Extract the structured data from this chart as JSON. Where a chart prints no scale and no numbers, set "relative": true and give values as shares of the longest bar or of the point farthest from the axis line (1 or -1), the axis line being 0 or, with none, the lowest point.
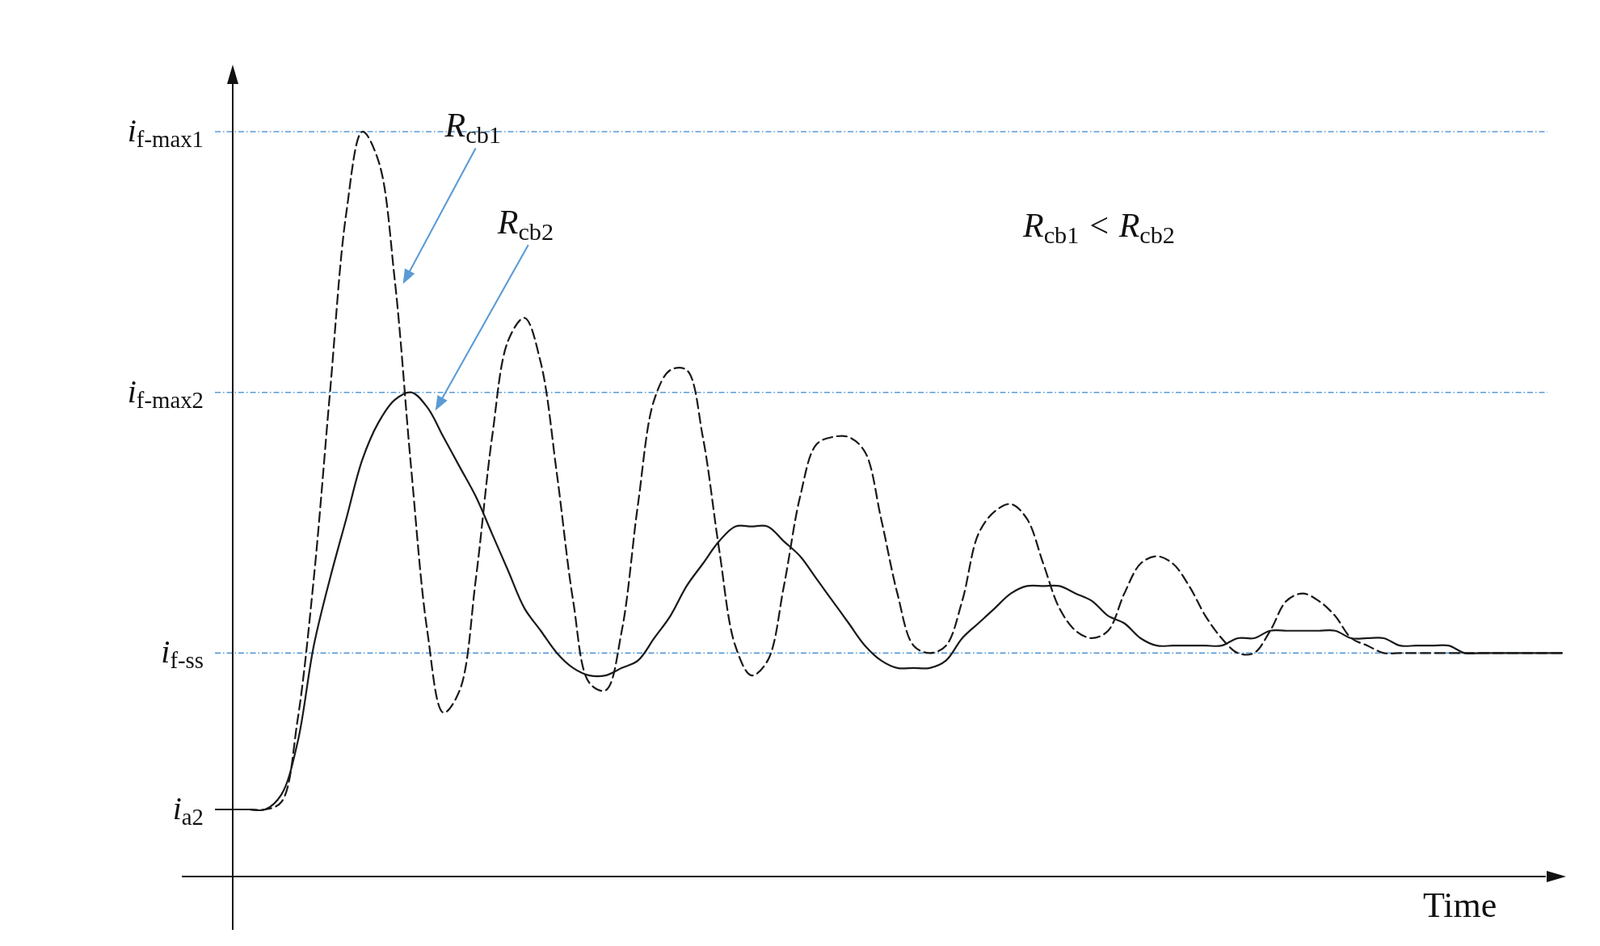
{
  "chart_data": {
    "type": "line",
    "xlabel": "Time",
    "relative": true,
    "categories": [
      null,
      null,
      null,
      null,
      null,
      null,
      null,
      null,
      null,
      null,
      null,
      null,
      null,
      null,
      null,
      null,
      null,
      null,
      null,
      null,
      null,
      null,
      null,
      null,
      null,
      null,
      null,
      null,
      null,
      null,
      null,
      null,
      null,
      null,
      null,
      null,
      null,
      null,
      null,
      null,
      null,
      null,
      null,
      null,
      null,
      null,
      null,
      null,
      null,
      null,
      null,
      null,
      null,
      null,
      null,
      null,
      null,
      null,
      null,
      null,
      null,
      null,
      null,
      null,
      null,
      null,
      null,
      null,
      null,
      null,
      null,
      null,
      null,
      null,
      null,
      null,
      null,
      null,
      null,
      null,
      null,
      null,
      null
    ],
    "series": [
      {
        "color": "#1a1a1a",
        "line_style": "dashed",
        "values": [
          0.09,
          0.09,
          0.09,
          0.1,
          0.21,
          0.4,
          0.65,
          0.89,
          1.0,
          0.96,
          0.8,
          0.55,
          0.33,
          0.22,
          0.25,
          0.4,
          0.59,
          0.72,
          0.75,
          0.69,
          0.54,
          0.37,
          0.26,
          0.25,
          0.33,
          0.5,
          0.64,
          0.68,
          0.68,
          0.59,
          0.44,
          0.31,
          0.27,
          0.29,
          0.39,
          0.51,
          0.58,
          0.59,
          0.59,
          0.57,
          0.48,
          0.38,
          0.31,
          0.3,
          0.31,
          0.37,
          0.46,
          0.49,
          0.5,
          0.48,
          0.42,
          0.36,
          0.33,
          0.32,
          0.33,
          0.38,
          0.42,
          0.43,
          0.42,
          0.39,
          0.35,
          0.32,
          0.3,
          0.3,
          0.33,
          0.37,
          0.38,
          0.37,
          0.35,
          0.32,
          0.31,
          0.3,
          0.3,
          0.3,
          0.3,
          0.3,
          0.3,
          0.3,
          0.3,
          0.3,
          0.3,
          0.3,
          0.3
        ]
      },
      {
        "color": "#1a1a1a",
        "line_style": "solid",
        "values": [
          0.09,
          0.09,
          0.09,
          0.11,
          0.18,
          0.31,
          0.4,
          0.48,
          0.56,
          0.61,
          0.64,
          0.65,
          0.63,
          0.59,
          0.55,
          0.51,
          0.46,
          0.41,
          0.36,
          0.33,
          0.3,
          0.28,
          0.27,
          0.27,
          0.28,
          0.29,
          0.32,
          0.35,
          0.39,
          0.42,
          0.45,
          0.47,
          0.47,
          0.47,
          0.45,
          0.43,
          0.4,
          0.37,
          0.34,
          0.31,
          0.29,
          0.28,
          0.28,
          0.28,
          0.29,
          0.32,
          0.34,
          0.36,
          0.38,
          0.39,
          0.39,
          0.39,
          0.38,
          0.37,
          0.35,
          0.34,
          0.32,
          0.31,
          0.31,
          0.31,
          0.31,
          0.31,
          0.32,
          0.32,
          0.33,
          0.33,
          0.33,
          0.33,
          0.33,
          0.32,
          0.32,
          0.32,
          0.31,
          0.31,
          0.31,
          0.31,
          0.3,
          0.3,
          0.3,
          0.3,
          0.3,
          0.3,
          0.3
        ]
      }
    ],
    "ref_lines": [
      {
        "axis": "y",
        "value": 1.0,
        "label": "i$_{f-max1}$",
        "color": "#5b9bd5",
        "line_style": "dashdot"
      },
      {
        "axis": "y",
        "value": 0.65,
        "label": "i$_{f-max2}$",
        "color": "#5b9bd5",
        "line_style": "dashdot"
      },
      {
        "axis": "y",
        "value": 0.3,
        "label": "i$_{f-ss}$",
        "color": "#5b9bd5",
        "line_style": "dashdot"
      }
    ],
    "annotations": [
      "i$_{a2}$",
      "R$_{cb1}$",
      "R$_{cb2}$",
      "R$_{cb1}$ < R$_{cb2}$"
    ]
  }
}
